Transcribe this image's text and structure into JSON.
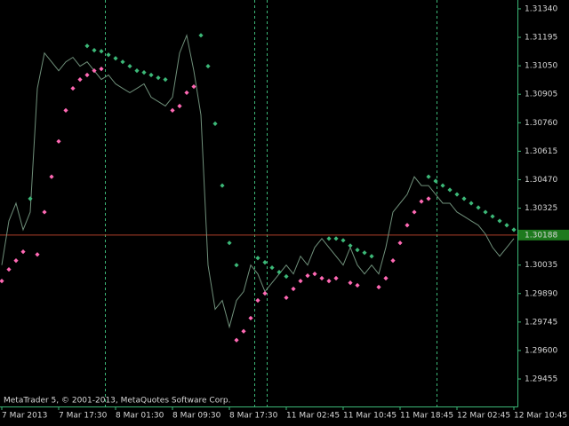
{
  "chart_data": {
    "type": "line",
    "watermark": "MetaTrader 5, © 2001-2013, MetaQuotes Software Corp.",
    "xlim": [
      -0.25,
      72.5
    ],
    "xticks": [
      {
        "value": 0,
        "label": "7 Mar 2013"
      },
      {
        "value": 8,
        "label": "7 Mar 17:30"
      },
      {
        "value": 16,
        "label": "8 Mar 01:30"
      },
      {
        "value": 24,
        "label": "8 Mar 09:30"
      },
      {
        "value": 32,
        "label": "8 Mar 17:30"
      },
      {
        "value": 40,
        "label": "11 Mar 02:45"
      },
      {
        "value": 48,
        "label": "11 Mar 10:45"
      },
      {
        "value": 56,
        "label": "11 Mar 18:45"
      },
      {
        "value": 64,
        "label": "12 Mar 02:45"
      },
      {
        "value": 72,
        "label": "12 Mar 10:45"
      }
    ],
    "ylim": [
      1.29315,
      1.31385
    ],
    "yticks": [
      {
        "value": 1.3134,
        "label": "1.31340"
      },
      {
        "value": 1.31195,
        "label": "1.31195"
      },
      {
        "value": 1.3105,
        "label": "1.31050"
      },
      {
        "value": 1.30905,
        "label": "1.30905"
      },
      {
        "value": 1.3076,
        "label": "1.30760"
      },
      {
        "value": 1.30615,
        "label": "1.30615"
      },
      {
        "value": 1.3047,
        "label": "1.30470"
      },
      {
        "value": 1.30325,
        "label": "1.30325"
      },
      {
        "value": 1.3018,
        "label": "1.30180"
      },
      {
        "value": 1.30035,
        "label": "1.30035"
      },
      {
        "value": 1.2989,
        "label": "1.29890"
      },
      {
        "value": 1.29745,
        "label": "1.29745"
      },
      {
        "value": 1.296,
        "label": "1.29600"
      },
      {
        "value": 1.29455,
        "label": "1.29455"
      }
    ],
    "current_price": {
      "value": 1.30188,
      "label": "1.30188"
    },
    "series": [
      {
        "color": "#6f8f7a",
        "style": "line",
        "values": [
          1.30035,
          1.3026,
          1.3035,
          1.30215,
          1.30305,
          1.30935,
          1.31115,
          1.3107,
          1.31025,
          1.3107,
          1.31093,
          1.31048,
          1.3107,
          1.31025,
          1.3098,
          1.31003,
          1.30958,
          1.30935,
          1.30913,
          1.30935,
          1.30958,
          1.3089,
          1.30868,
          1.30845,
          1.3089,
          1.31115,
          1.31205,
          1.31025,
          1.308,
          1.30035,
          1.2981,
          1.29855,
          1.2972,
          1.29855,
          1.299,
          1.30035,
          1.2999,
          1.299,
          1.29945,
          1.2999,
          1.30035,
          1.2999,
          1.3008,
          1.30035,
          1.30125,
          1.3017,
          1.30125,
          1.3008,
          1.30035,
          1.30125,
          1.30035,
          1.2999,
          1.30035,
          1.2999,
          1.30125,
          1.30305,
          1.3035,
          1.30395,
          1.30485,
          1.3044,
          1.3044,
          1.30395,
          1.3035,
          1.3035,
          1.30305,
          1.30283,
          1.3026,
          1.30238,
          1.30193,
          1.30125,
          1.3008,
          1.30125,
          1.3017
        ]
      },
      {
        "color": "#3cb878",
        "style": "dots",
        "values": [
          null,
          null,
          null,
          null,
          1.30373,
          null,
          null,
          null,
          null,
          null,
          null,
          null,
          1.31151,
          1.31129,
          1.31124,
          1.31106,
          1.31088,
          1.3107,
          1.31048,
          1.31025,
          1.31016,
          1.31003,
          1.30989,
          1.3098,
          null,
          null,
          null,
          null,
          1.31205,
          1.31048,
          1.30755,
          1.3044,
          1.30148,
          1.30035,
          null,
          null,
          1.30071,
          1.30049,
          1.30022,
          1.29999,
          1.29977,
          null,
          null,
          null,
          null,
          null,
          1.3017,
          1.3017,
          1.30161,
          1.30134,
          1.30112,
          1.30098,
          1.3008,
          null,
          null,
          null,
          null,
          null,
          null,
          null,
          1.30485,
          1.30463,
          1.3044,
          1.30418,
          1.30395,
          1.30373,
          1.3035,
          1.30328,
          1.30305,
          1.30283,
          1.3026,
          1.30238,
          1.30215
        ]
      },
      {
        "color": "#ff69b4",
        "style": "dots",
        "values": [
          1.29954,
          1.30013,
          1.30058,
          1.30103,
          null,
          1.30089,
          1.30305,
          1.30485,
          1.30665,
          1.30823,
          1.30935,
          1.3098,
          1.31003,
          1.31025,
          1.31034,
          null,
          null,
          null,
          null,
          null,
          null,
          null,
          null,
          null,
          1.30823,
          1.30845,
          1.30913,
          1.30944,
          null,
          null,
          null,
          null,
          null,
          1.29653,
          1.29698,
          1.29765,
          1.29855,
          1.29891,
          null,
          null,
          1.29869,
          1.29914,
          1.29954,
          1.29981,
          1.2999,
          1.29968,
          1.29954,
          1.29968,
          null,
          1.29945,
          1.29932,
          null,
          null,
          1.29923,
          1.29968,
          1.30058,
          1.30148,
          1.30238,
          1.30305,
          1.30359,
          1.30373,
          null,
          null,
          null,
          null,
          null,
          null,
          null,
          null,
          null,
          null,
          null,
          null
        ]
      }
    ]
  }
}
